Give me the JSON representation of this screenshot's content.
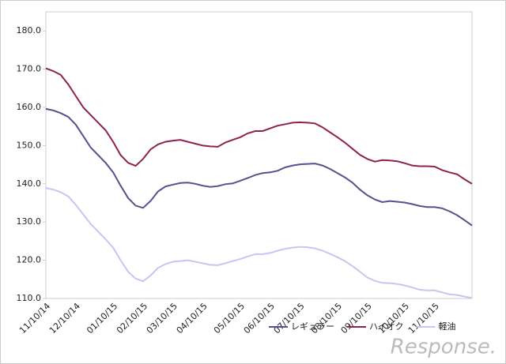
{
  "chart_data": {
    "type": "line",
    "categories": [
      "11/10/14",
      null,
      null,
      null,
      "12/10/14",
      null,
      null,
      null,
      null,
      "01/10/15",
      null,
      null,
      null,
      "02/10/15",
      null,
      null,
      null,
      "03/10/15",
      null,
      null,
      null,
      "04/10/15",
      null,
      null,
      null,
      null,
      "05/10/15",
      null,
      null,
      null,
      "06/10/15",
      null,
      null,
      null,
      "07/10/15",
      null,
      null,
      null,
      null,
      "08/10/15",
      null,
      null,
      null,
      "09/10/15",
      null,
      null,
      null,
      null,
      "10/10/15",
      null,
      null,
      null,
      "11/10/15",
      null,
      null,
      null,
      null,
      null
    ],
    "series": [
      {
        "name": "レギュラー",
        "color": "#55508e",
        "values": [
          159.6,
          159.2,
          158.5,
          157.5,
          155.5,
          152.5,
          149.5,
          147.5,
          145.5,
          143,
          139.5,
          136.3,
          134.3,
          133.7,
          135.5,
          138,
          139.3,
          139.8,
          140.2,
          140.3,
          140,
          139.5,
          139.2,
          139.4,
          139.9,
          140.1,
          140.8,
          141.5,
          142.3,
          142.8,
          143,
          143.4,
          144.3,
          144.8,
          145.1,
          145.2,
          145.3,
          144.8,
          143.9,
          142.8,
          141.7,
          140.3,
          138.5,
          137,
          135.9,
          135.2,
          135.5,
          135.3,
          135.1,
          134.7,
          134.2,
          133.9,
          133.9,
          133.6,
          132.8,
          131.8,
          130.5,
          129.1
        ]
      },
      {
        "name": "ハイオク",
        "color": "#8c2252",
        "values": [
          170.2,
          169.5,
          168.5,
          166,
          163,
          160,
          158,
          156,
          154,
          151,
          147.5,
          145.5,
          144.7,
          146.5,
          149,
          150.3,
          151,
          151.3,
          151.5,
          151,
          150.5,
          150,
          149.8,
          149.7,
          150.8,
          151.5,
          152.2,
          153.2,
          153.8,
          153.8,
          154.5,
          155.2,
          155.6,
          156,
          156.1,
          156,
          155.8,
          154.8,
          153.5,
          152.2,
          150.8,
          149.2,
          147.6,
          146.5,
          145.8,
          146.2,
          146.1,
          145.9,
          145.4,
          144.8,
          144.6,
          144.6,
          144.5,
          143.6,
          143,
          142.5,
          141.2,
          140.0
        ]
      },
      {
        "name": "軽油",
        "color": "#c6c6f0",
        "values": [
          138.9,
          138.5,
          137.8,
          136.7,
          134.5,
          132,
          129.5,
          127.5,
          125.5,
          123.3,
          120,
          117,
          115.2,
          114.5,
          116,
          118,
          119,
          119.6,
          119.8,
          120,
          119.6,
          119.2,
          118.8,
          118.7,
          119.2,
          119.8,
          120.3,
          121,
          121.6,
          121.6,
          121.9,
          122.5,
          123,
          123.3,
          123.5,
          123.4,
          123.1,
          122.5,
          121.7,
          120.8,
          119.8,
          118.5,
          117,
          115.5,
          114.6,
          114.1,
          114,
          113.8,
          113.4,
          112.9,
          112.3,
          112.1,
          112.1,
          111.6,
          111.1,
          110.9,
          110.5,
          110.1
        ]
      }
    ],
    "ylim": [
      110,
      185
    ],
    "yticks": [
      {
        "value": 110,
        "label": "110.0"
      },
      {
        "value": 120,
        "label": "120.0"
      },
      {
        "value": 130,
        "label": "130.0"
      },
      {
        "value": 140,
        "label": "140.0"
      },
      {
        "value": 150,
        "label": "150.0"
      },
      {
        "value": 160,
        "label": "160.0"
      },
      {
        "value": 170,
        "label": "170.0"
      },
      {
        "value": 180,
        "label": "180.0"
      }
    ],
    "grid": false,
    "legend": "bottom-right",
    "watermark": "Response."
  }
}
